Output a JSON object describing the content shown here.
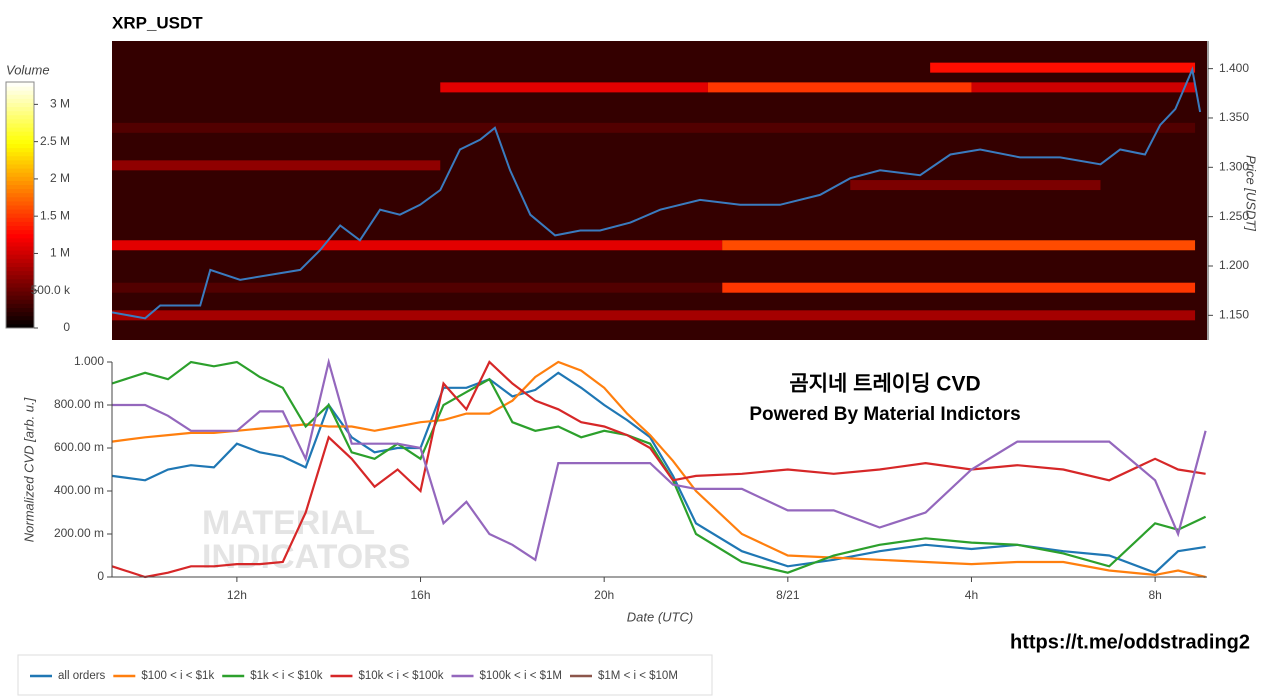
{
  "chart_data": [
    {
      "type": "heatmap",
      "title": "XRP_USDT",
      "colorbar_title": "Volume",
      "y_label": "Price [USDT]",
      "zlim": [
        0,
        3300000
      ],
      "zticks": [
        0,
        {
          "value": 500000,
          "label": "500.0 k"
        },
        {
          "value": 1000000,
          "label": "1 M"
        },
        {
          "value": 1500000,
          "label": "1.5 M"
        },
        {
          "value": 2000000,
          "label": "2 M"
        },
        {
          "value": 2500000,
          "label": "2.5 M"
        },
        {
          "value": 3000000,
          "label": "3 M"
        }
      ],
      "xlim": [
        9.28,
        33.13
      ],
      "ylim": [
        1.125,
        1.428
      ],
      "yticks": [
        {
          "value": 1.15,
          "label": "1.150"
        },
        {
          "value": 1.2,
          "label": "1.200"
        },
        {
          "value": 1.25,
          "label": "1.250"
        },
        {
          "value": 1.3,
          "label": "1.300"
        },
        {
          "value": 1.35,
          "label": "1.350"
        },
        {
          "value": 1.4,
          "label": "1.400"
        }
      ],
      "background_volume": 250000,
      "bands": [
        {
          "price": 1.221,
          "x": [
            9.28,
            22.57
          ],
          "volume": 1100000
        },
        {
          "price": 1.221,
          "x": [
            22.57,
            32.87
          ],
          "volume": 1600000
        },
        {
          "price": 1.178,
          "x": [
            22.57,
            32.87
          ],
          "volume": 1500000
        },
        {
          "price": 1.178,
          "x": [
            9.28,
            22.57
          ],
          "volume": 400000
        },
        {
          "price": 1.381,
          "x": [
            16.43,
            22.26
          ],
          "volume": 1100000
        },
        {
          "price": 1.381,
          "x": [
            22.26,
            28.0
          ],
          "volume": 1500000
        },
        {
          "price": 1.381,
          "x": [
            28.0,
            32.87
          ],
          "volume": 1000000
        },
        {
          "price": 1.15,
          "x": [
            9.28,
            32.87
          ],
          "volume": 800000
        },
        {
          "price": 1.401,
          "x": [
            27.1,
            32.87
          ],
          "volume": 1300000
        },
        {
          "price": 1.302,
          "x": [
            9.28,
            16.43
          ],
          "volume": 700000
        },
        {
          "price": 1.282,
          "x": [
            25.36,
            30.81
          ],
          "volume": 600000
        },
        {
          "price": 1.34,
          "x": [
            9.28,
            32.87
          ],
          "volume": 400000
        }
      ],
      "price": {
        "color": "#3a7bbf",
        "x": [
          9.28,
          10.0,
          10.33,
          11.2,
          11.42,
          12.07,
          13.38,
          13.81,
          14.25,
          14.68,
          15.12,
          15.55,
          15.99,
          16.43,
          16.86,
          17.3,
          17.62,
          17.95,
          18.39,
          18.93,
          19.48,
          19.91,
          20.57,
          21.22,
          22.09,
          22.96,
          23.83,
          24.7,
          25.36,
          26.01,
          26.88,
          27.54,
          28.19,
          29.06,
          29.93,
          30.81,
          31.24,
          31.78,
          32.11,
          32.44,
          32.81,
          32.98
        ],
        "values": [
          1.153,
          1.147,
          1.16,
          1.16,
          1.196,
          1.186,
          1.196,
          1.216,
          1.241,
          1.226,
          1.257,
          1.252,
          1.262,
          1.277,
          1.318,
          1.328,
          1.34,
          1.297,
          1.252,
          1.231,
          1.236,
          1.236,
          1.244,
          1.257,
          1.267,
          1.262,
          1.262,
          1.272,
          1.289,
          1.297,
          1.292,
          1.313,
          1.318,
          1.31,
          1.31,
          1.303,
          1.318,
          1.313,
          1.343,
          1.359,
          1.399,
          1.356
        ]
      }
    },
    {
      "type": "line",
      "x_label": "Date (UTC)",
      "y_label": "Normalized CVD [arb. u.]",
      "xlim": [
        9.28,
        33.13
      ],
      "xticks": [
        {
          "value": 12,
          "label": "12h"
        },
        {
          "value": 16,
          "label": "16h"
        },
        {
          "value": 20,
          "label": "20h"
        },
        {
          "value": 24,
          "label": "8/21"
        },
        {
          "value": 28,
          "label": "4h"
        },
        {
          "value": 32,
          "label": "8h"
        }
      ],
      "ylim": [
        0,
        1
      ],
      "yticks": [
        0,
        {
          "value": 0.2,
          "label": "200.00 m"
        },
        {
          "value": 0.4,
          "label": "400.00 m"
        },
        {
          "value": 0.6,
          "label": "600.00 m"
        },
        {
          "value": 0.8,
          "label": "800.00 m"
        },
        {
          "value": 1,
          "label": "1.000"
        }
      ],
      "annotations": [
        "곰지네 트레이딩 CVD",
        "Powered By Material Indictors"
      ],
      "watermark": [
        "MATERIAL",
        "INDICATORS"
      ],
      "x": [
        9.28,
        10,
        10.5,
        11,
        11.5,
        12,
        12.5,
        13,
        13.5,
        14,
        14.5,
        15,
        15.5,
        16,
        16.5,
        17,
        17.5,
        18,
        18.5,
        19,
        19.5,
        20,
        20.5,
        21,
        21.5,
        22,
        23,
        24,
        25,
        26,
        27,
        28,
        29,
        30,
        31,
        32,
        32.5,
        33.1
      ],
      "series": [
        {
          "name": "all orders",
          "color": "#1f77b4",
          "values": [
            0.47,
            0.45,
            0.5,
            0.52,
            0.51,
            0.62,
            0.58,
            0.56,
            0.51,
            0.8,
            0.65,
            0.58,
            0.6,
            0.6,
            0.88,
            0.88,
            0.92,
            0.84,
            0.87,
            0.95,
            0.88,
            0.8,
            0.73,
            0.65,
            0.47,
            0.25,
            0.12,
            0.05,
            0.08,
            0.12,
            0.15,
            0.13,
            0.15,
            0.12,
            0.1,
            0.02,
            0.12,
            0.14
          ]
        },
        {
          "name": "$100 < i < $1k",
          "color": "#ff7f0e",
          "values": [
            0.63,
            0.65,
            0.66,
            0.67,
            0.67,
            0.68,
            0.69,
            0.7,
            0.71,
            0.7,
            0.7,
            0.68,
            0.7,
            0.72,
            0.73,
            0.76,
            0.76,
            0.82,
            0.93,
            1.0,
            0.96,
            0.88,
            0.76,
            0.66,
            0.54,
            0.4,
            0.2,
            0.1,
            0.09,
            0.08,
            0.07,
            0.06,
            0.07,
            0.07,
            0.03,
            0.01,
            0.03,
            0.0
          ]
        },
        {
          "name": "$1k < i < $10k",
          "color": "#2ca02c",
          "values": [
            0.9,
            0.95,
            0.92,
            1.0,
            0.98,
            1.0,
            0.93,
            0.88,
            0.7,
            0.8,
            0.58,
            0.55,
            0.62,
            0.55,
            0.8,
            0.86,
            0.92,
            0.72,
            0.68,
            0.7,
            0.65,
            0.68,
            0.66,
            0.62,
            0.45,
            0.2,
            0.07,
            0.02,
            0.1,
            0.15,
            0.18,
            0.16,
            0.15,
            0.11,
            0.05,
            0.25,
            0.22,
            0.28
          ]
        },
        {
          "name": "$10k < i < $100k",
          "color": "#d62728",
          "values": [
            0.05,
            0.0,
            0.02,
            0.05,
            0.05,
            0.06,
            0.06,
            0.07,
            0.3,
            0.65,
            0.55,
            0.42,
            0.5,
            0.4,
            0.9,
            0.78,
            1.0,
            0.9,
            0.82,
            0.78,
            0.72,
            0.7,
            0.66,
            0.6,
            0.45,
            0.47,
            0.48,
            0.5,
            0.48,
            0.5,
            0.53,
            0.5,
            0.52,
            0.5,
            0.45,
            0.55,
            0.5,
            0.48
          ]
        },
        {
          "name": "$100k < i < $1M",
          "color": "#9467bd",
          "values": [
            0.8,
            0.8,
            0.75,
            0.68,
            0.68,
            0.68,
            0.77,
            0.77,
            0.55,
            1.0,
            0.62,
            0.62,
            0.62,
            0.6,
            0.25,
            0.35,
            0.2,
            0.15,
            0.08,
            0.53,
            0.53,
            0.53,
            0.53,
            0.53,
            0.43,
            0.41,
            0.41,
            0.31,
            0.31,
            0.23,
            0.3,
            0.5,
            0.63,
            0.63,
            0.63,
            0.45,
            0.2,
            0.68
          ]
        },
        {
          "name": "$1M < i < $10M",
          "color": "#8c564b",
          "values": [
            null,
            null,
            null,
            null,
            null,
            null,
            null,
            null,
            null,
            null,
            null,
            null,
            null,
            null,
            null,
            null,
            null,
            null,
            null,
            null,
            null,
            null,
            null,
            null,
            null,
            null,
            null,
            null,
            null,
            null,
            null,
            null,
            null,
            null,
            null,
            null,
            null,
            null
          ]
        }
      ]
    }
  ],
  "footer_link": "https://t.me/oddstrading2"
}
